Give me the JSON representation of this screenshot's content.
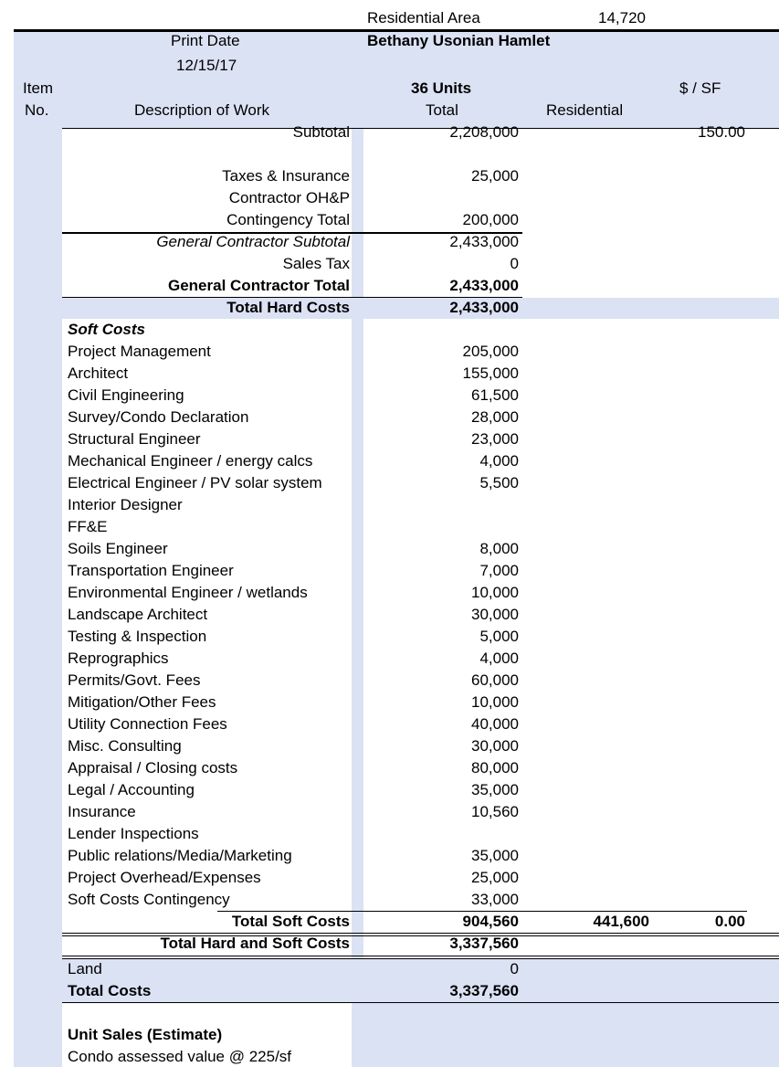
{
  "header": {
    "residential_area_label": "Residential Area",
    "residential_area_value": "14,720",
    "print_date_label": "Print Date",
    "project": "Bethany Usonian Hamlet",
    "print_date": "12/15/17",
    "item": "Item",
    "no": "No.",
    "units": "36 Units",
    "per_sf": "$ / SF",
    "description": "Description of Work",
    "total": "Total",
    "residential": "Residential"
  },
  "rows": [
    {
      "desc": "Subtotal",
      "total": "2,208,000",
      "per_sf": "150.00",
      "align": "right"
    },
    {
      "desc": "Taxes & Insurance",
      "total": "25,000",
      "align": "right"
    },
    {
      "desc": "Contractor OH&P",
      "align": "right"
    },
    {
      "desc": "Contingency Total",
      "total": "200,000",
      "align": "right"
    },
    {
      "desc": "General Contractor Subtotal",
      "total": "2,433,000",
      "align": "right",
      "italic": true
    },
    {
      "desc": "Sales Tax",
      "total": "0",
      "align": "right"
    },
    {
      "desc": "General Contractor Total",
      "total": "2,433,000",
      "align": "right",
      "bold": true
    },
    {
      "desc": "Total Hard Costs",
      "total": "2,433,000",
      "align": "right",
      "bold": true
    },
    {
      "desc": "Soft Costs",
      "align": "left",
      "bold": true,
      "italic": true
    },
    {
      "desc": "Project Management",
      "total": "205,000",
      "align": "left"
    },
    {
      "desc": "Architect",
      "total": "155,000",
      "align": "left"
    },
    {
      "desc": "Civil Engineering",
      "total": "61,500",
      "align": "left"
    },
    {
      "desc": "Survey/Condo Declaration",
      "total": "28,000",
      "align": "left"
    },
    {
      "desc": "Structural Engineer",
      "total": "23,000",
      "align": "left"
    },
    {
      "desc": "Mechanical Engineer / energy calcs",
      "total": "4,000",
      "align": "left"
    },
    {
      "desc": "Electrical Engineer / PV solar system",
      "total": "5,500",
      "align": "left"
    },
    {
      "desc": "Interior Designer",
      "align": "left"
    },
    {
      "desc": "FF&E",
      "align": "left"
    },
    {
      "desc": "Soils Engineer",
      "total": "8,000",
      "align": "left"
    },
    {
      "desc": "Transportation Engineer",
      "total": "7,000",
      "align": "left"
    },
    {
      "desc": "Environmental Engineer / wetlands",
      "total": "10,000",
      "align": "left"
    },
    {
      "desc": "Landscape Architect",
      "total": "30,000",
      "align": "left"
    },
    {
      "desc": "Testing & Inspection",
      "total": "5,000",
      "align": "left"
    },
    {
      "desc": "Reprographics",
      "total": "4,000",
      "align": "left"
    },
    {
      "desc": "Permits/Govt. Fees",
      "total": "60,000",
      "align": "left"
    },
    {
      "desc": "Mitigation/Other Fees",
      "total": "10,000",
      "align": "left"
    },
    {
      "desc": "Utility Connection Fees",
      "total": "40,000",
      "align": "left"
    },
    {
      "desc": "Misc. Consulting",
      "total": "30,000",
      "align": "left"
    },
    {
      "desc": "Appraisal / Closing costs",
      "total": "80,000",
      "align": "left"
    },
    {
      "desc": "Legal / Accounting",
      "total": "35,000",
      "align": "left"
    },
    {
      "desc": "Insurance",
      "total": "10,560",
      "align": "left"
    },
    {
      "desc": "Lender Inspections",
      "align": "left"
    },
    {
      "desc": "Public relations/Media/Marketing",
      "total": "35,000",
      "align": "left"
    },
    {
      "desc": "Project Overhead/Expenses",
      "total": "25,000",
      "align": "left"
    },
    {
      "desc": "Soft Costs Contingency",
      "total": "33,000",
      "align": "left"
    },
    {
      "desc": "Total Soft Costs",
      "total": "904,560",
      "residential": "441,600",
      "per_sf": "0.00",
      "align": "right",
      "bold": true
    },
    {
      "desc": "Total Hard and Soft Costs",
      "total": "3,337,560",
      "align": "right",
      "bold": true
    },
    {
      "desc": "Land",
      "total": "0",
      "align": "left"
    },
    {
      "desc": "Total Costs",
      "total": "3,337,560",
      "align": "left",
      "bold": true
    },
    {
      "desc": "Unit Sales (Estimate)",
      "align": "left",
      "bold": true
    },
    {
      "desc": "Condo assessed value @ 225/sf",
      "align": "left"
    }
  ]
}
